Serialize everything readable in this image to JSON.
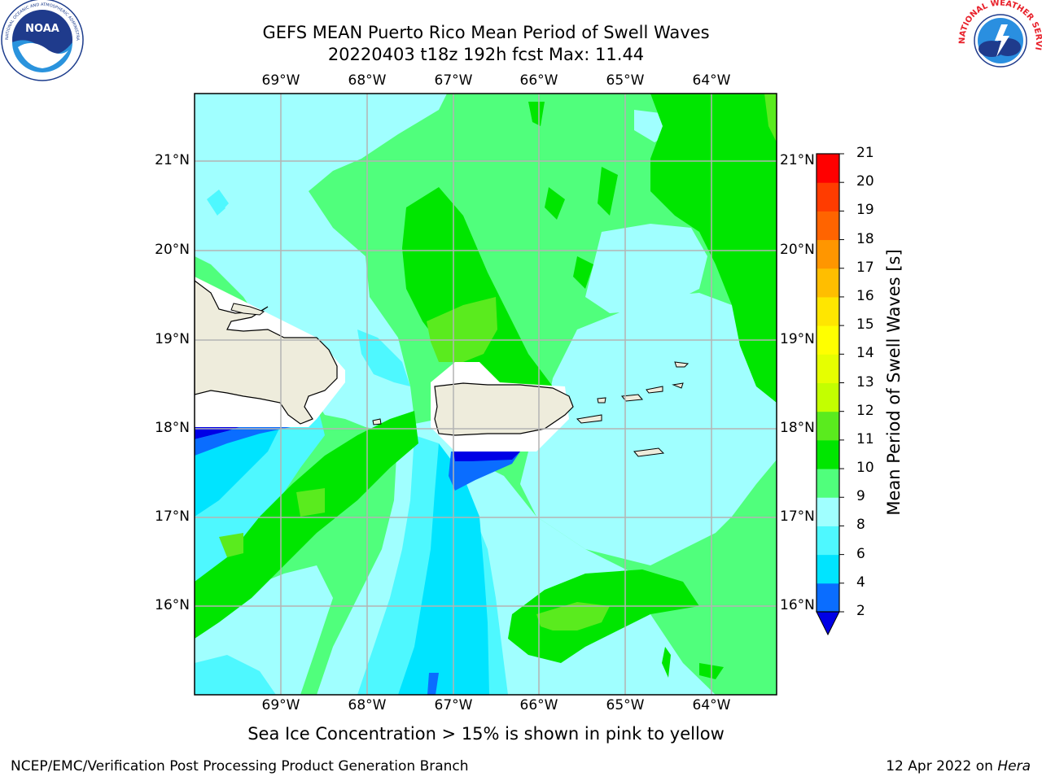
{
  "header": {
    "title_line1": "GEFS MEAN Puerto Rico Mean Period of Swell Waves",
    "title_line2": "20220403 t18z 192h fcst   Max: 11.44"
  },
  "logos": {
    "left": {
      "name": "NOAA",
      "ring_text": "NATIONAL OCEANIC AND ATMOSPHERIC ADMINISTRATION · U.S. DEPARTMENT OF COMMERCE",
      "icon": "noaa-logo"
    },
    "right": {
      "ring_text": "NATIONAL WEATHER SERVICE",
      "icon": "nws-logo"
    }
  },
  "map": {
    "longitude_labels": [
      "69°W",
      "68°W",
      "67°W",
      "66°W",
      "65°W",
      "64°W"
    ],
    "latitude_labels": [
      "21°N",
      "20°N",
      "19°N",
      "18°N",
      "17°N",
      "16°N"
    ],
    "grid": true,
    "colors": {
      "land": "#eeecdc",
      "no_data": "#ffffff",
      "gridline": "#b4b4b4"
    }
  },
  "colorbar": {
    "label": "Mean Period of Swell Waves [s]",
    "tick_labels": [
      "2",
      "4",
      "6",
      "8",
      "9",
      "10",
      "11",
      "12",
      "13",
      "14",
      "15",
      "16",
      "17",
      "18",
      "19",
      "20",
      "21"
    ],
    "bins": [
      {
        "range": "below 2",
        "color": "#0000e6"
      },
      {
        "range": "2-4",
        "color": "#0a6dff"
      },
      {
        "range": "4-6",
        "color": "#00e4ff"
      },
      {
        "range": "6-8",
        "color": "#4ef8ff"
      },
      {
        "range": "8-9",
        "color": "#a0ffff"
      },
      {
        "range": "9-10",
        "color": "#50ff7c"
      },
      {
        "range": "10-11",
        "color": "#00e600"
      },
      {
        "range": "11-12",
        "color": "#5aeb1e"
      },
      {
        "range": "12-13",
        "color": "#c3ff00"
      },
      {
        "range": "13-14",
        "color": "#e6ff00"
      },
      {
        "range": "14-15",
        "color": "#ffff00"
      },
      {
        "range": "15-16",
        "color": "#ffe600"
      },
      {
        "range": "16-17",
        "color": "#ffbe00"
      },
      {
        "range": "17-18",
        "color": "#ff9600"
      },
      {
        "range": "18-19",
        "color": "#ff6400"
      },
      {
        "range": "19-20",
        "color": "#ff3c00"
      },
      {
        "range": "20-21",
        "color": "#ff0000"
      }
    ],
    "extend": "min"
  },
  "caption": "Sea Ice Concentration > 15% is shown in pink to yellow",
  "footer": {
    "left": "NCEP/EMC/Verification Post Processing Product Generation Branch",
    "right_date": "12 Apr 2022 on ",
    "right_host": "Hera"
  }
}
